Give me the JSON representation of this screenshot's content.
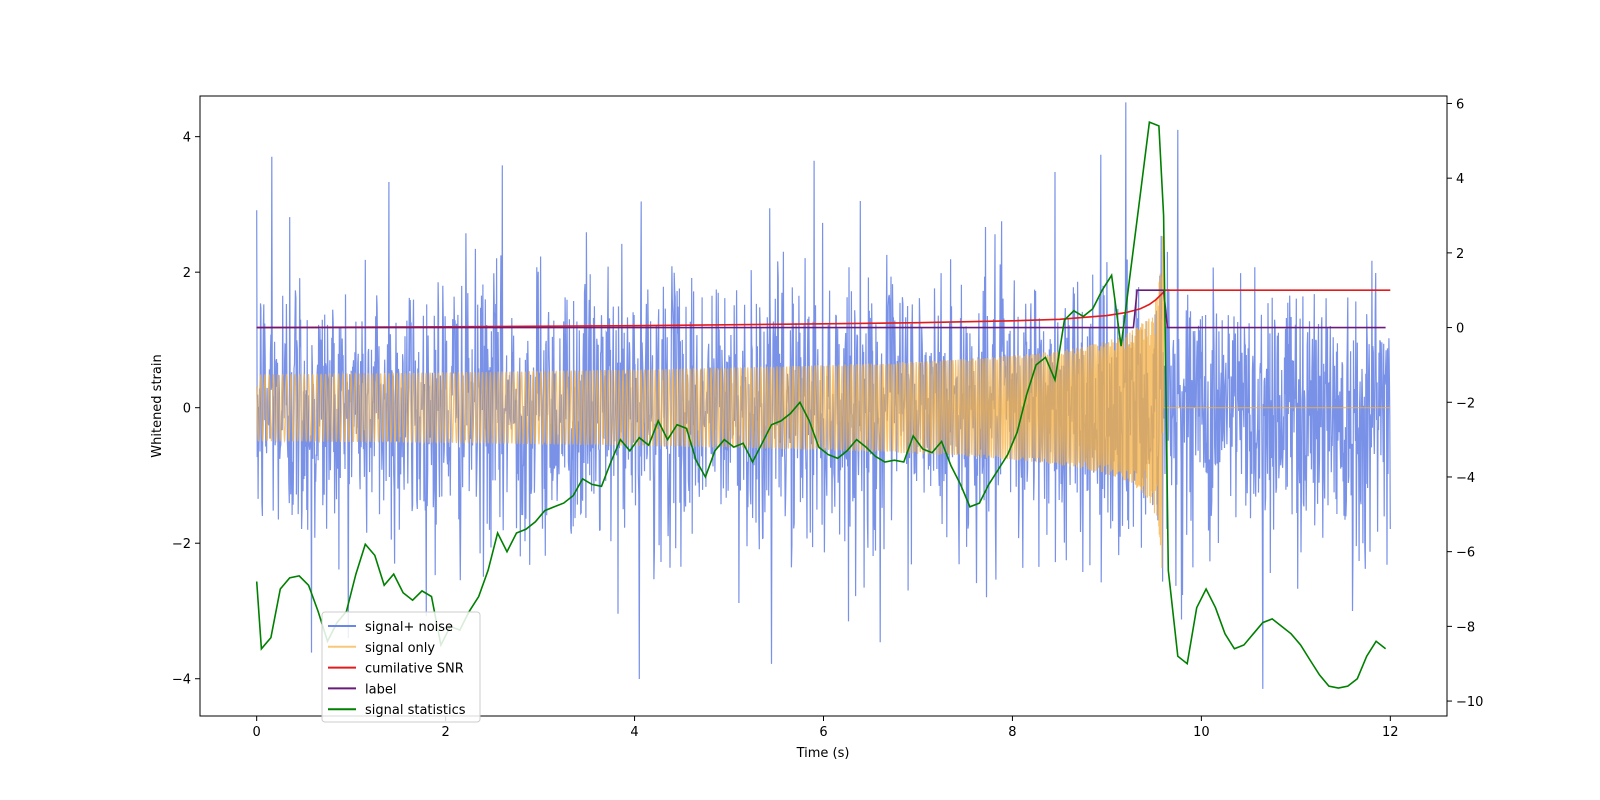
{
  "chart_data": {
    "type": "line",
    "title": "",
    "xlabel": "Time (s)",
    "ylabel": "Whitened strain",
    "ylabel_right": "",
    "xlim": [
      -0.6,
      12.6
    ],
    "ylim": [
      -4.55,
      4.6
    ],
    "ylim_right": [
      -10.4,
      6.2
    ],
    "x_ticks": [
      0,
      2,
      4,
      6,
      8,
      10,
      12
    ],
    "y_ticks": [
      -4,
      -2,
      0,
      2,
      4
    ],
    "y_ticks_right": [
      -10,
      -8,
      -6,
      -4,
      -2,
      0,
      2,
      4,
      6
    ],
    "x_tick_labels": [
      "0",
      "2",
      "4",
      "6",
      "8",
      "10",
      "12"
    ],
    "y_tick_labels": [
      "−4",
      "−2",
      "0",
      "2",
      "4"
    ],
    "y_tick_labels_right": [
      "−10",
      "−8",
      "−6",
      "−4",
      "−2",
      "0",
      "2",
      "4",
      "6"
    ],
    "grid": false,
    "legend_position": "lower-left",
    "series": [
      {
        "name": "signal+ noise",
        "axis": "left",
        "color": "#6a86e6",
        "description": "dense noisy whitened strain around 0, range roughly -4 to 4",
        "x_range": [
          0,
          12
        ],
        "noise_std": 1.0,
        "envelope_peaks": [
          [
            0.16,
            3.9
          ],
          [
            0.35,
            2.9
          ],
          [
            1.4,
            3.1
          ],
          [
            2.6,
            3.35
          ],
          [
            5.9,
            3.6
          ],
          [
            8.45,
            3.6
          ],
          [
            9.2,
            4.15
          ],
          [
            9.75,
            4.1
          ],
          [
            0.58,
            -3.55
          ],
          [
            4.05,
            -3.75
          ],
          [
            5.45,
            -3.7
          ],
          [
            6.6,
            -3.75
          ],
          [
            10.65,
            -4.15
          ],
          [
            11.6,
            -3.0
          ]
        ]
      },
      {
        "name": "signal only",
        "axis": "left",
        "color": "#f5b041",
        "description": "chirp signal growing in amplitude up to merger near t = 9.6 s, then zero",
        "x_range": [
          0,
          12
        ],
        "merger_time": 9.6,
        "peak_amplitude": 3.45
      },
      {
        "name": "cumilative SNR",
        "axis": "right",
        "color": "#e41a1c",
        "x": [
          0,
          2,
          4,
          6,
          7,
          8,
          8.5,
          9,
          9.2,
          9.35,
          9.45,
          9.52,
          9.58,
          9.62,
          10,
          11,
          12
        ],
        "y": [
          0,
          0.02,
          0.05,
          0.1,
          0.13,
          0.18,
          0.22,
          0.32,
          0.4,
          0.5,
          0.62,
          0.75,
          0.9,
          1.0,
          1.0,
          1.0,
          1.0
        ]
      },
      {
        "name": "label",
        "axis": "right",
        "color": "#6a1b7a",
        "x": [
          0,
          9.28,
          9.32,
          9.6,
          9.64,
          11.95
        ],
        "y": [
          0,
          0,
          1,
          1,
          0,
          0
        ]
      },
      {
        "name": "signal statistics",
        "axis": "right",
        "color": "#008000",
        "x": [
          0,
          0.05,
          0.15,
          0.25,
          0.35,
          0.45,
          0.55,
          0.65,
          0.75,
          0.85,
          0.95,
          1.05,
          1.15,
          1.25,
          1.35,
          1.45,
          1.55,
          1.65,
          1.75,
          1.85,
          1.95,
          2.05,
          2.15,
          2.25,
          2.35,
          2.45,
          2.55,
          2.65,
          2.75,
          2.85,
          2.95,
          3.05,
          3.15,
          3.25,
          3.35,
          3.45,
          3.55,
          3.65,
          3.75,
          3.85,
          3.95,
          4.05,
          4.15,
          4.25,
          4.35,
          4.45,
          4.55,
          4.65,
          4.75,
          4.85,
          4.95,
          5.05,
          5.15,
          5.25,
          5.35,
          5.45,
          5.55,
          5.65,
          5.75,
          5.85,
          5.95,
          6.05,
          6.15,
          6.25,
          6.35,
          6.45,
          6.55,
          6.65,
          6.75,
          6.85,
          6.95,
          7.05,
          7.15,
          7.25,
          7.35,
          7.45,
          7.55,
          7.65,
          7.75,
          7.85,
          7.95,
          8.05,
          8.15,
          8.25,
          8.35,
          8.45,
          8.55,
          8.65,
          8.75,
          8.85,
          8.95,
          9.05,
          9.15,
          9.25,
          9.35,
          9.45,
          9.55,
          9.6,
          9.65,
          9.75,
          9.85,
          9.95,
          10.05,
          10.15,
          10.25,
          10.35,
          10.45,
          10.55,
          10.65,
          10.75,
          10.85,
          10.95,
          11.05,
          11.15,
          11.25,
          11.35,
          11.45,
          11.55,
          11.65,
          11.75,
          11.85,
          11.95
        ],
        "y": [
          -6.8,
          -8.6,
          -8.3,
          -7.0,
          -6.7,
          -6.65,
          -6.9,
          -7.6,
          -8.4,
          -7.9,
          -7.6,
          -6.6,
          -5.8,
          -6.1,
          -6.9,
          -6.6,
          -7.1,
          -7.3,
          -7.05,
          -7.2,
          -8.5,
          -8.0,
          -8.1,
          -7.6,
          -7.2,
          -6.5,
          -5.5,
          -6.0,
          -5.5,
          -5.4,
          -5.2,
          -4.9,
          -4.8,
          -4.7,
          -4.5,
          -4.05,
          -4.2,
          -4.25,
          -3.6,
          -3.0,
          -3.3,
          -2.95,
          -3.15,
          -2.5,
          -3.0,
          -2.6,
          -2.7,
          -3.55,
          -4.0,
          -3.3,
          -3.0,
          -3.2,
          -3.1,
          -3.6,
          -3.1,
          -2.6,
          -2.5,
          -2.3,
          -2.0,
          -2.5,
          -3.2,
          -3.4,
          -3.5,
          -3.3,
          -3.0,
          -3.2,
          -3.45,
          -3.6,
          -3.55,
          -3.6,
          -2.9,
          -3.25,
          -3.35,
          -3.05,
          -3.7,
          -4.2,
          -4.8,
          -4.7,
          -4.2,
          -3.8,
          -3.4,
          -2.8,
          -1.8,
          -1.0,
          -0.8,
          -1.4,
          0.2,
          0.45,
          0.3,
          0.5,
          1.0,
          1.4,
          -0.5,
          1.5,
          3.5,
          5.5,
          5.4,
          3.0,
          -6.5,
          -8.8,
          -9.0,
          -7.5,
          -7.0,
          -7.5,
          -8.2,
          -8.6,
          -8.5,
          -8.2,
          -7.9,
          -7.8,
          -8.0,
          -8.2,
          -8.5,
          -8.9,
          -9.3,
          -9.6,
          -9.65,
          -9.6,
          -9.4,
          -8.8,
          -8.4,
          -8.6
        ]
      }
    ]
  }
}
